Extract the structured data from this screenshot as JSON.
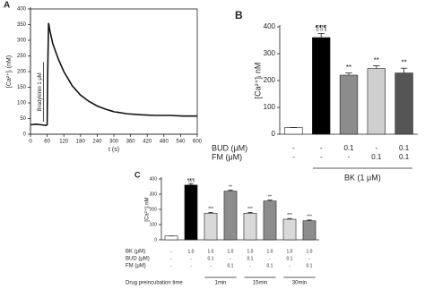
{
  "chart_data": [
    {
      "type": "line",
      "panel": "A",
      "ylabel": "[Ca²⁺]ᵢ (nM)",
      "xlabel": "t (s)",
      "annotation": "Bradykinin 1 μM",
      "color": "#111",
      "x": [
        0,
        20,
        40,
        55,
        60,
        62,
        65,
        70,
        80,
        100,
        120,
        150,
        180,
        210,
        240,
        270,
        300,
        350,
        400,
        450,
        500,
        550,
        600
      ],
      "values": [
        30,
        32,
        30,
        28,
        30,
        200,
        355,
        330,
        290,
        240,
        200,
        155,
        125,
        105,
        90,
        80,
        72,
        65,
        62,
        60,
        60,
        58,
        58
      ],
      "xlim": [
        0,
        600
      ],
      "xticks": [
        0,
        60,
        120,
        180,
        240,
        300,
        360,
        420,
        480,
        540,
        600
      ],
      "ylim": [
        0,
        400
      ],
      "yticks": [
        0,
        50,
        100,
        150,
        200,
        250,
        300,
        350,
        400
      ]
    },
    {
      "type": "bar",
      "panel": "B",
      "ylabel": "[Ca²⁺]ᵢ nM",
      "values": [
        25,
        360,
        220,
        245,
        228
      ],
      "errors": [
        0,
        15,
        8,
        10,
        18
      ],
      "colors": [
        "#ffffff",
        "#000000",
        "#8c8c8c",
        "#cfcfcf",
        "#555555"
      ],
      "annotations": [
        null,
        "¶¶¶",
        "**",
        "**",
        "**"
      ],
      "ylim": [
        0,
        400
      ],
      "yticks": [
        0,
        100,
        200,
        300,
        400
      ],
      "table": {
        "rows": [
          {
            "label": "BUD (μM)",
            "cells": [
              "-",
              "-",
              "0.1",
              "-",
              "0.1"
            ]
          },
          {
            "label": "FM (μM)",
            "cells": [
              "-",
              "-",
              "-",
              "0.1",
              "0.1"
            ]
          }
        ]
      },
      "group_label": "BK (1 μM)"
    },
    {
      "type": "bar",
      "panel": "C",
      "ylabel": "[Ca²⁺]ᵢ nM",
      "values": [
        25,
        360,
        175,
        320,
        175,
        255,
        135,
        125
      ],
      "errors": [
        0,
        8,
        5,
        6,
        5,
        6,
        5,
        5
      ],
      "colors": [
        "#ffffff",
        "#000000",
        "#d9d9d9",
        "#8c8c8c",
        "#d9d9d9",
        "#8c8c8c",
        "#d9d9d9",
        "#8c8c8c"
      ],
      "annotations": [
        null,
        "¶¶¶",
        "***",
        "**",
        "***",
        "**",
        "***",
        "***"
      ],
      "ylim": [
        0,
        400
      ],
      "yticks": [
        0,
        100,
        200,
        300,
        400
      ],
      "table": {
        "rows": [
          {
            "label": "BK (μM)",
            "cells": [
              "-",
              "1.0",
              "1.0",
              "1.0",
              "1.0",
              "1.0",
              "1.0",
              "1.0"
            ]
          },
          {
            "label": "BUD (μM)",
            "cells": [
              "-",
              "-",
              "0.1",
              "-",
              "0.1",
              "-",
              "0.1",
              "-"
            ]
          },
          {
            "label": "FM (μM)",
            "cells": [
              "-",
              "-",
              "-",
              "0.1",
              "-",
              "0.1",
              "-",
              "0.1"
            ]
          }
        ]
      },
      "time_label": "Drug preincubation time",
      "time_groups": [
        "1min",
        "15min",
        "30min"
      ]
    }
  ]
}
